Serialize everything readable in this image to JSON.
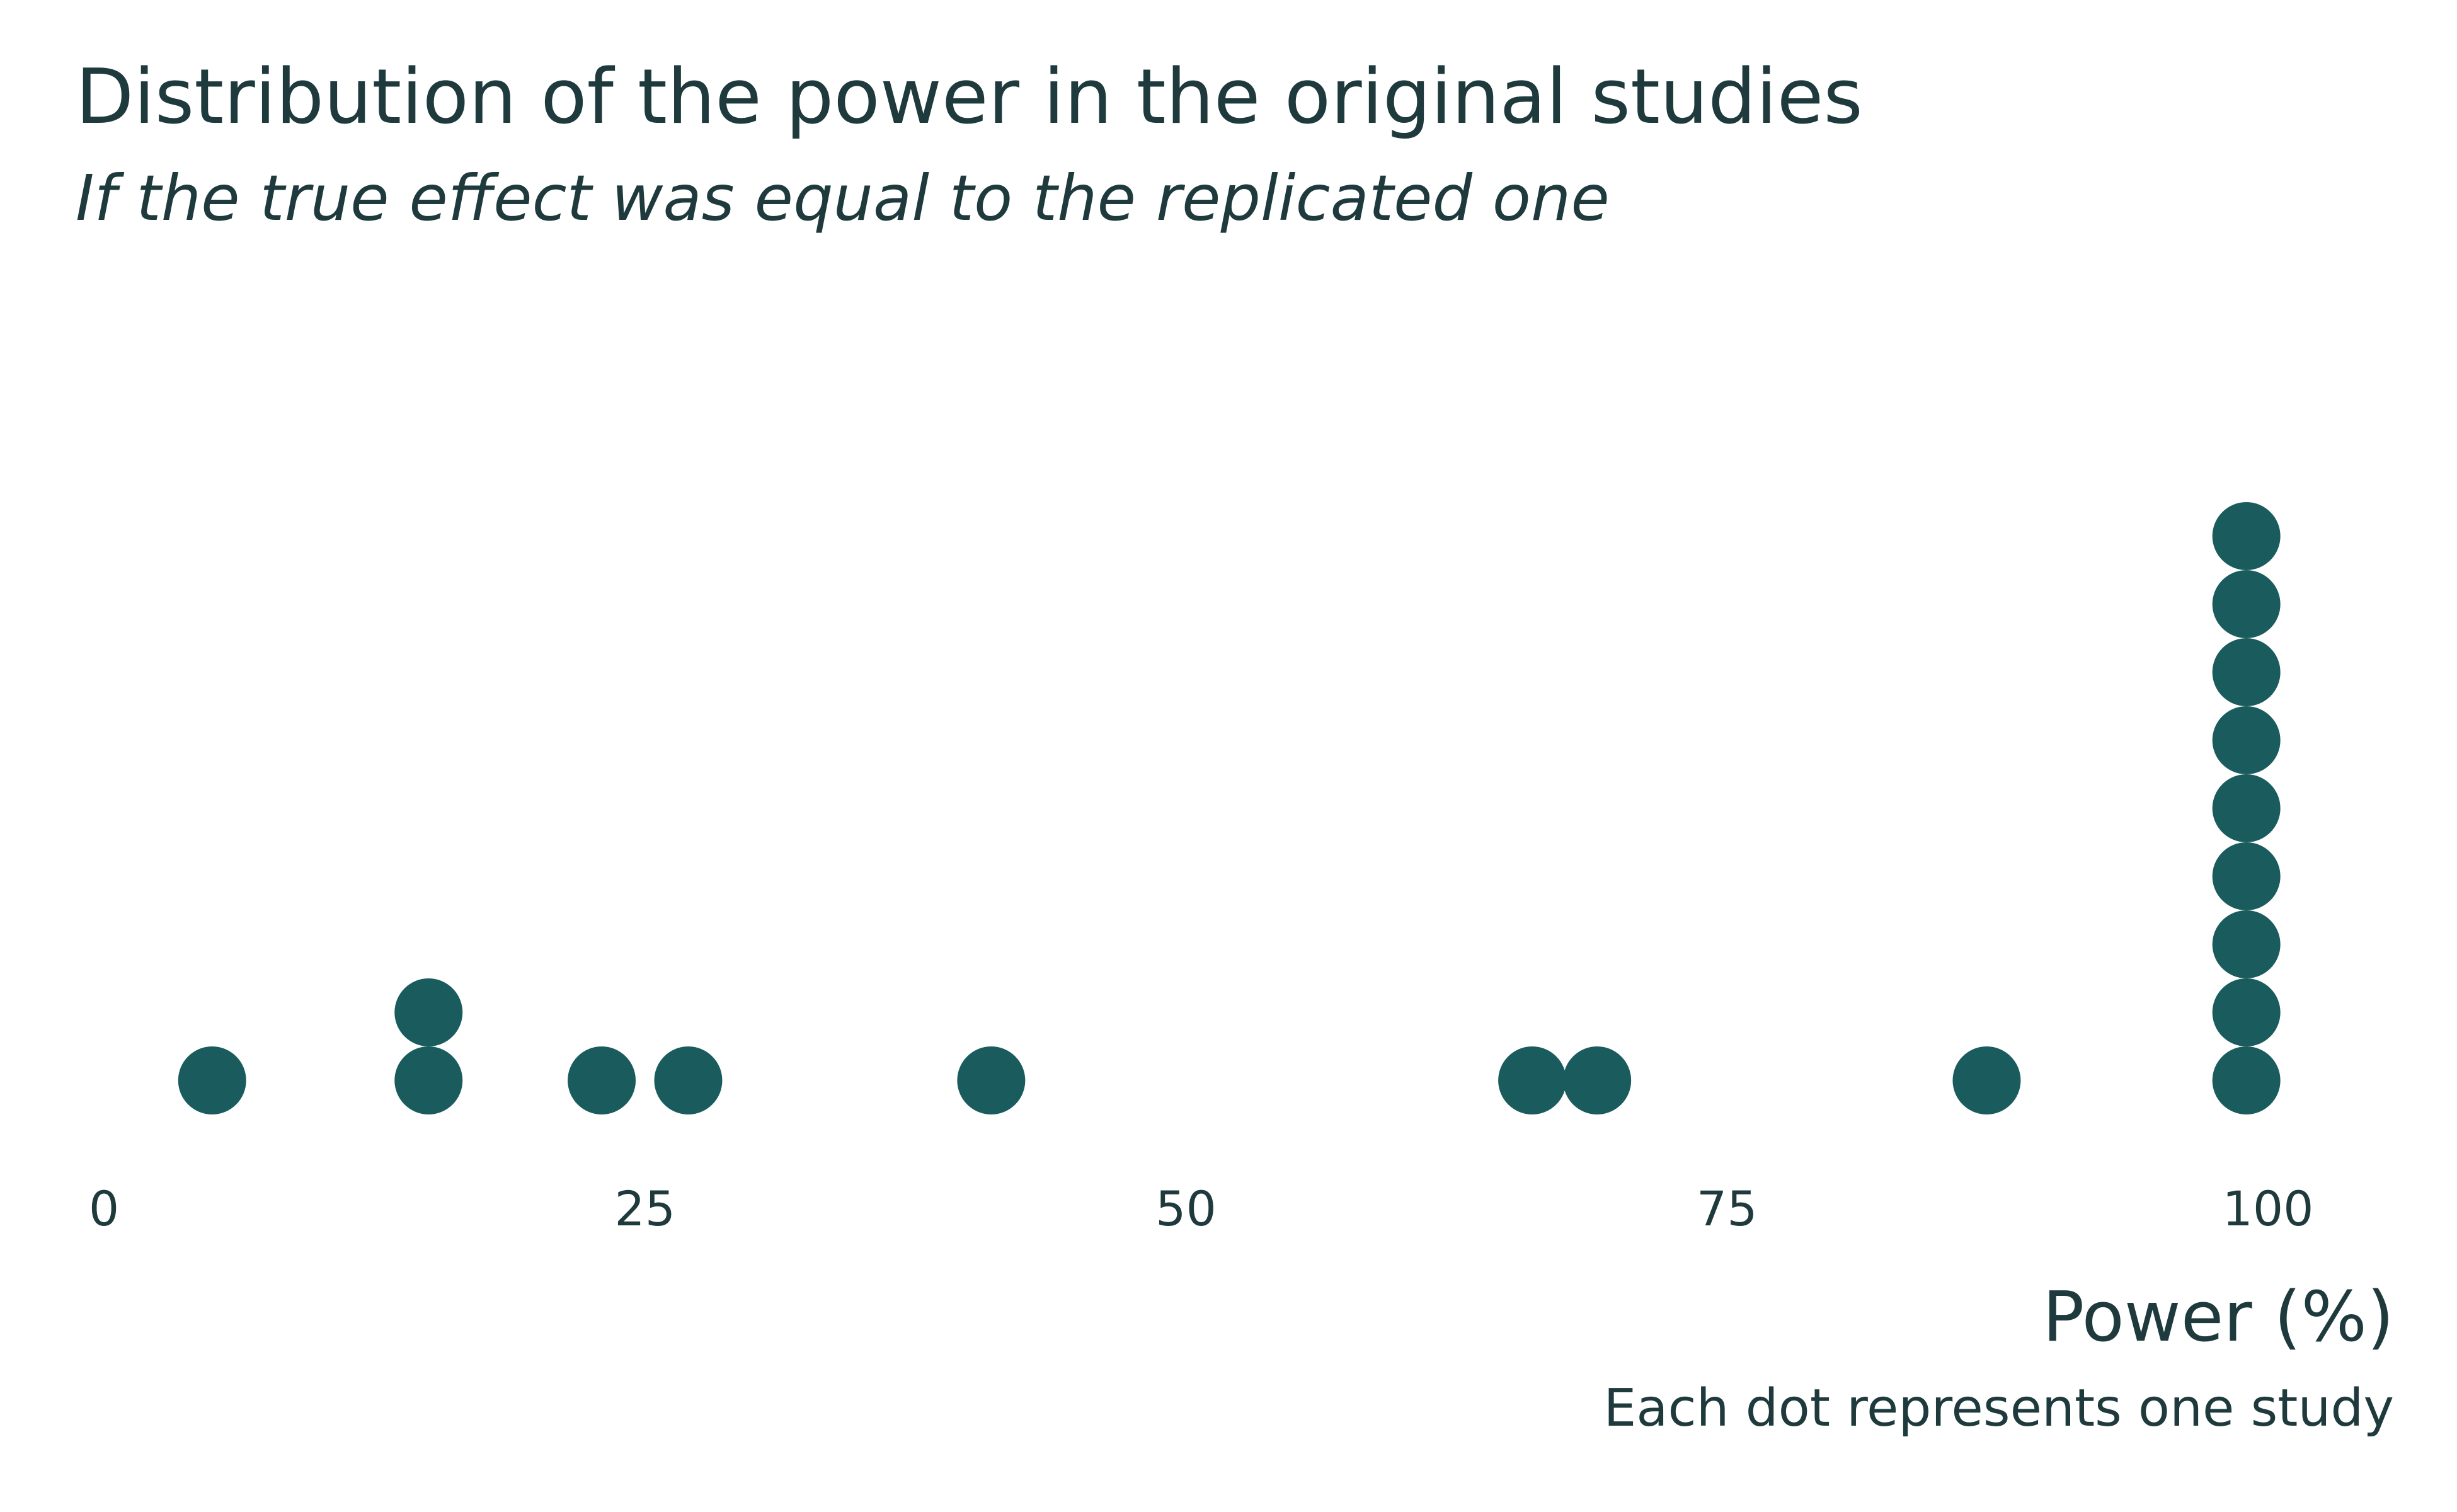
{
  "chart_data": {
    "type": "scatter",
    "title": "Distribution of the power in the original studies",
    "subtitle": "If the true effect was equal to the replicated one",
    "xlabel": "Power (%)",
    "ylabel": "",
    "caption": "Each dot represents one study",
    "xlim": [
      0,
      100
    ],
    "xticks": [
      0,
      25,
      50,
      75,
      100
    ],
    "grid": false,
    "legend": "none",
    "dot_color": "#1a5c5e",
    "points": [
      {
        "x": 5,
        "stack": 1
      },
      {
        "x": 15,
        "stack": 1
      },
      {
        "x": 15,
        "stack": 2
      },
      {
        "x": 23,
        "stack": 1
      },
      {
        "x": 27,
        "stack": 1
      },
      {
        "x": 41,
        "stack": 1
      },
      {
        "x": 66,
        "stack": 1
      },
      {
        "x": 69,
        "stack": 1
      },
      {
        "x": 87,
        "stack": 1
      },
      {
        "x": 99,
        "stack": 1
      },
      {
        "x": 99,
        "stack": 2
      },
      {
        "x": 99,
        "stack": 3
      },
      {
        "x": 99,
        "stack": 4
      },
      {
        "x": 99,
        "stack": 5
      },
      {
        "x": 99,
        "stack": 6
      },
      {
        "x": 99,
        "stack": 7
      },
      {
        "x": 99,
        "stack": 8
      },
      {
        "x": 99,
        "stack": 9
      }
    ]
  }
}
